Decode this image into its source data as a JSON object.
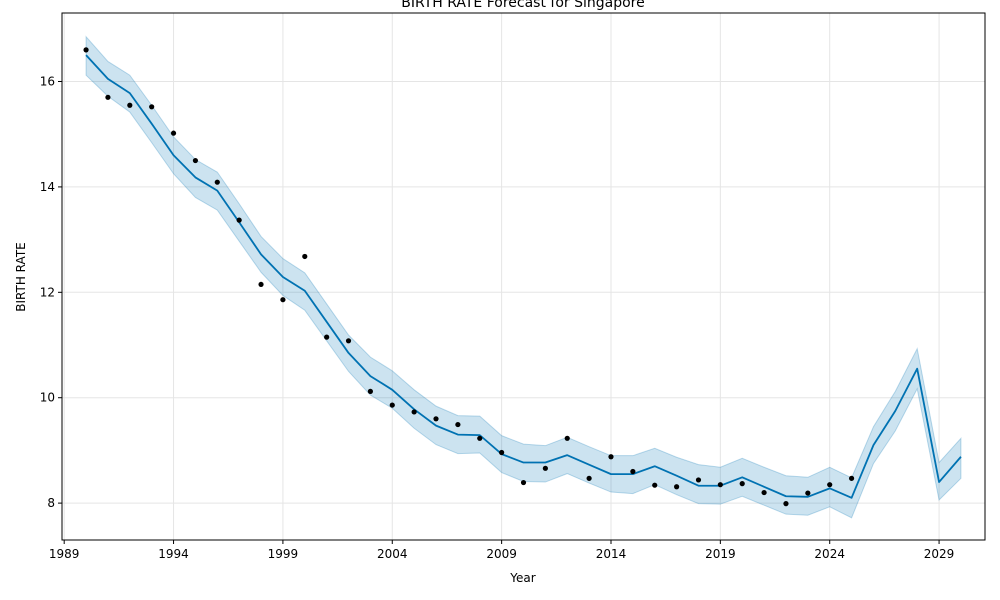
{
  "chart_data": {
    "type": "line",
    "title": "BIRTH RATE Forecast for Singapore",
    "xlabel": "Year",
    "ylabel": "BIRTH RATE",
    "xlim": [
      1988.9,
      2031.1
    ],
    "ylim": [
      7.3,
      17.3
    ],
    "x_ticks": [
      1989,
      1994,
      1999,
      2004,
      2009,
      2014,
      2019,
      2024,
      2029
    ],
    "y_ticks": [
      8,
      10,
      12,
      14,
      16
    ],
    "grid": true,
    "colors": {
      "forecast": "#0072B2",
      "band": "#0072B2",
      "observed": "#000000"
    },
    "series": [
      {
        "role": "forecast",
        "x": [
          1990,
          1991,
          1992,
          1993,
          1994,
          1995,
          1996,
          1997,
          1998,
          1999,
          2000,
          2001,
          2002,
          2003,
          2004,
          2005,
          2006,
          2007,
          2008,
          2009,
          2010,
          2011,
          2012,
          2013,
          2014,
          2015,
          2016,
          2017,
          2018,
          2019,
          2020,
          2021,
          2022,
          2023,
          2024,
          2025,
          2026,
          2027,
          2028,
          2029,
          2030
        ],
        "values": [
          16.5,
          16.05,
          15.78,
          15.2,
          14.6,
          14.18,
          13.93,
          13.33,
          12.72,
          12.29,
          12.03,
          11.44,
          10.85,
          10.41,
          10.15,
          9.78,
          9.47,
          9.3,
          9.29,
          8.93,
          8.77,
          8.77,
          8.91,
          8.73,
          8.55,
          8.55,
          8.7,
          8.52,
          8.33,
          8.33,
          8.49,
          8.31,
          8.13,
          8.12,
          8.28,
          8.1,
          9.1,
          9.75,
          10.55,
          8.4,
          8.88
        ]
      },
      {
        "role": "upper",
        "x": [
          1990,
          1991,
          1992,
          1993,
          1994,
          1995,
          1996,
          1997,
          1998,
          1999,
          2000,
          2001,
          2002,
          2003,
          2004,
          2005,
          2006,
          2007,
          2008,
          2009,
          2010,
          2011,
          2012,
          2013,
          2014,
          2015,
          2016,
          2017,
          2018,
          2019,
          2020,
          2021,
          2022,
          2023,
          2024,
          2025,
          2026,
          2027,
          2028,
          2029,
          2030
        ],
        "values": [
          16.85,
          16.38,
          16.12,
          15.55,
          14.95,
          14.52,
          14.28,
          13.68,
          13.06,
          12.64,
          12.37,
          11.78,
          11.19,
          10.77,
          10.51,
          10.15,
          9.84,
          9.66,
          9.65,
          9.28,
          9.12,
          9.09,
          9.25,
          9.07,
          8.9,
          8.9,
          9.04,
          8.87,
          8.73,
          8.68,
          8.85,
          8.68,
          8.52,
          8.49,
          8.68,
          8.48,
          9.45,
          10.12,
          10.93,
          8.77,
          9.23
        ]
      },
      {
        "role": "lower",
        "x": [
          1990,
          1991,
          1992,
          1993,
          1994,
          1995,
          1996,
          1997,
          1998,
          1999,
          2000,
          2001,
          2002,
          2003,
          2004,
          2005,
          2006,
          2007,
          2008,
          2009,
          2010,
          2011,
          2012,
          2013,
          2014,
          2015,
          2016,
          2017,
          2018,
          2019,
          2020,
          2021,
          2022,
          2023,
          2024,
          2025,
          2026,
          2027,
          2028,
          2029,
          2030
        ],
        "values": [
          16.12,
          15.72,
          15.42,
          14.84,
          14.25,
          13.8,
          13.56,
          12.97,
          12.38,
          11.94,
          11.66,
          11.08,
          10.5,
          10.05,
          9.8,
          9.42,
          9.11,
          8.94,
          8.95,
          8.58,
          8.41,
          8.4,
          8.56,
          8.38,
          8.21,
          8.18,
          8.35,
          8.16,
          7.99,
          7.98,
          8.13,
          7.96,
          7.79,
          7.77,
          7.93,
          7.72,
          8.75,
          9.37,
          10.17,
          8.06,
          8.47
        ]
      },
      {
        "role": "observed",
        "x": [
          1990,
          1991,
          1992,
          1993,
          1994,
          1995,
          1996,
          1997,
          1998,
          1999,
          2000,
          2001,
          2002,
          2003,
          2004,
          2005,
          2006,
          2007,
          2008,
          2009,
          2010,
          2011,
          2012,
          2013,
          2014,
          2015,
          2016,
          2017,
          2018,
          2019,
          2020,
          2021,
          2022,
          2023,
          2024,
          2025
        ],
        "values": [
          16.6,
          15.7,
          15.55,
          15.52,
          15.02,
          14.5,
          14.09,
          13.37,
          12.15,
          11.86,
          12.68,
          11.15,
          11.08,
          10.12,
          9.86,
          9.73,
          9.6,
          9.49,
          9.23,
          8.96,
          8.39,
          8.66,
          9.23,
          8.47,
          8.88,
          8.6,
          8.34,
          8.31,
          8.44,
          8.35,
          8.37,
          8.2,
          7.99,
          8.19,
          8.35,
          8.47
        ]
      }
    ]
  }
}
